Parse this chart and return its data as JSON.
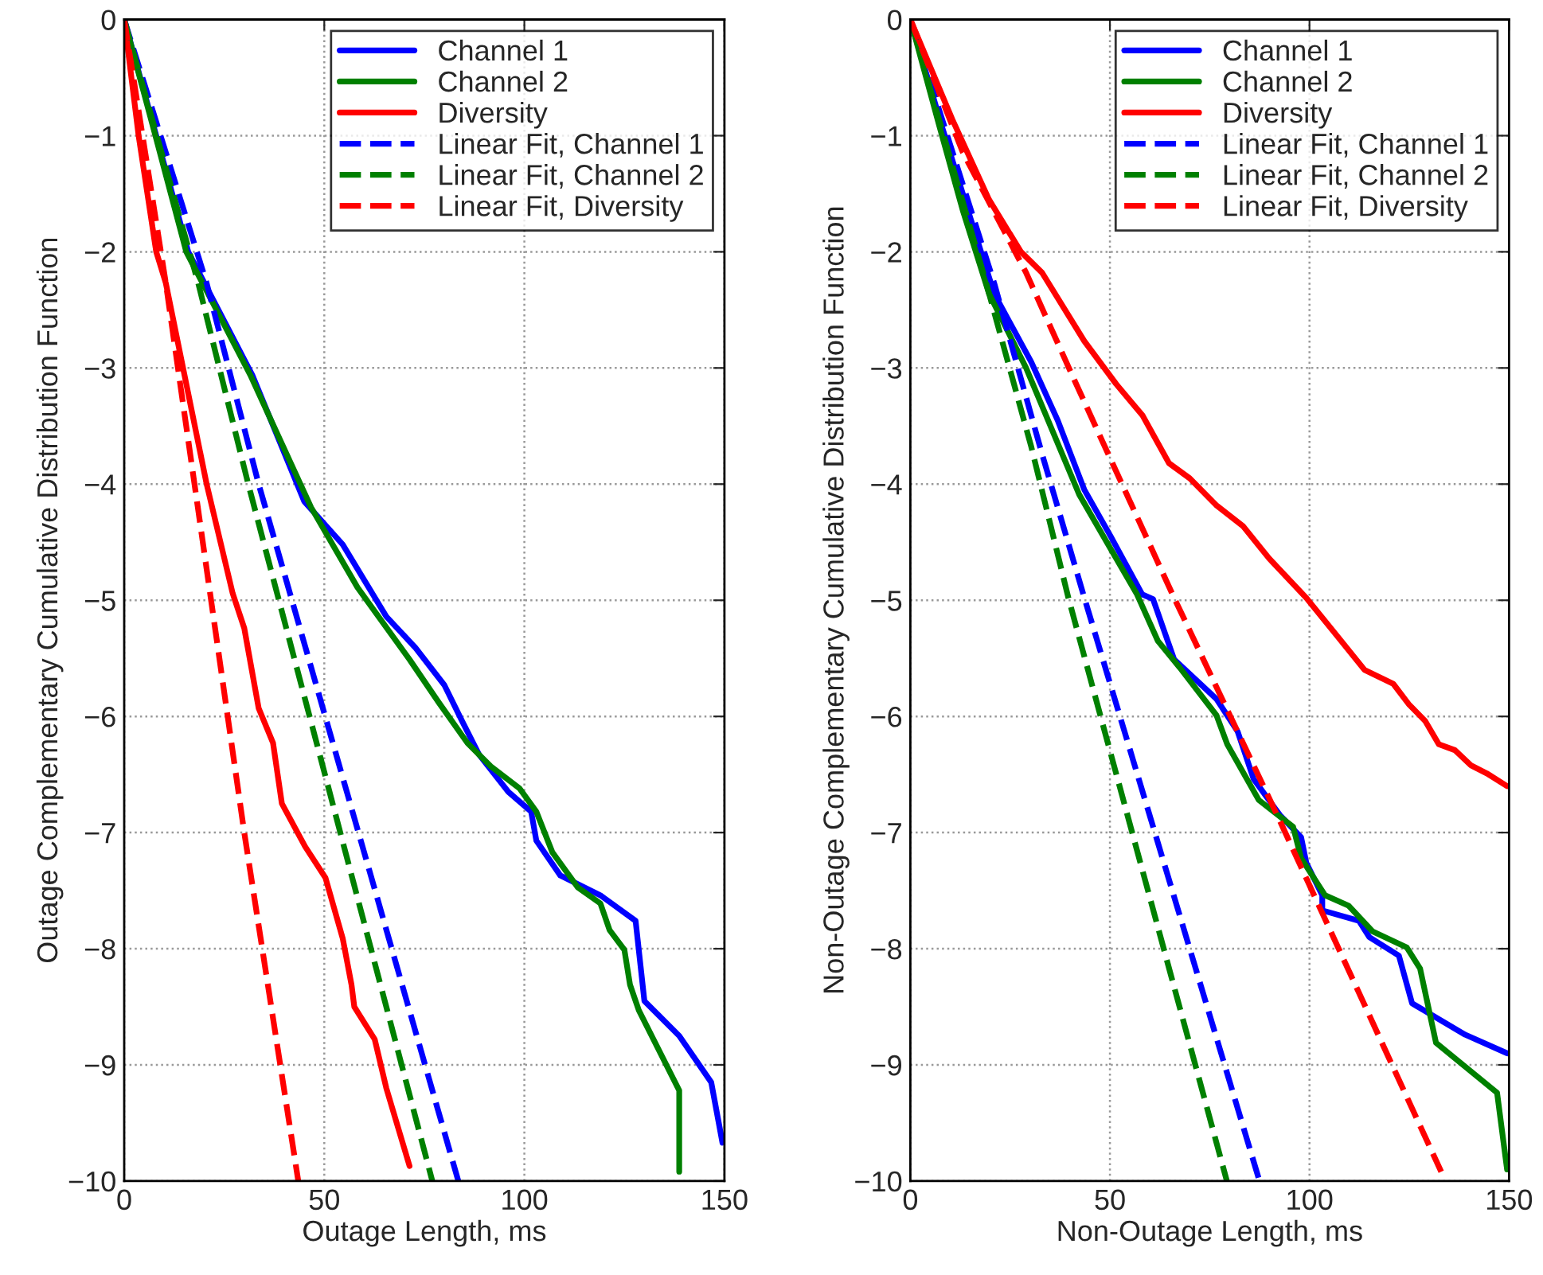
{
  "chart_data": [
    {
      "type": "line",
      "xlabel": "Outage Length, ms",
      "ylabel": "Outage Complementary Cumulative Distribution Function",
      "xlim": [
        0,
        150
      ],
      "ylim": [
        -10,
        0
      ],
      "xticks": [
        0,
        50,
        100,
        150
      ],
      "yticks": [
        {
          "value": -10,
          "label": "−10"
        },
        {
          "value": -9,
          "label": "−9"
        },
        {
          "value": -8,
          "label": "−8"
        },
        {
          "value": -7,
          "label": "−7"
        },
        {
          "value": -6,
          "label": "−6"
        },
        {
          "value": -5,
          "label": "−5"
        },
        {
          "value": -4,
          "label": "−4"
        },
        {
          "value": -3,
          "label": "−3"
        },
        {
          "value": -2,
          "label": "−2"
        },
        {
          "value": -1,
          "label": "−1"
        },
        0
      ],
      "grid": true,
      "legend": "top right",
      "series": [
        {
          "name": "Channel 1",
          "color": "#0000ff",
          "line_style": "solid",
          "x": [
            0,
            8,
            16,
            32,
            45,
            54.6,
            65.5,
            72.8,
            80,
            84.3,
            88.7,
            96,
            101.7,
            103,
            109,
            119,
            127.8,
            130,
            138.7,
            146.7,
            149.5
          ],
          "values": [
            0,
            -1,
            -2,
            -3.06,
            -4.15,
            -4.52,
            -5.14,
            -5.41,
            -5.73,
            -6.03,
            -6.33,
            -6.65,
            -6.82,
            -7.07,
            -7.37,
            -7.54,
            -7.76,
            -8.45,
            -8.75,
            -9.15,
            -9.67
          ]
        },
        {
          "name": "Channel 2",
          "color": "#008000",
          "line_style": "solid",
          "x": [
            0,
            7.8,
            15.5,
            31.5,
            46.7,
            58.3,
            71.3,
            78.6,
            85.8,
            91.6,
            98.8,
            103,
            107,
            113.3,
            119,
            121.3,
            125,
            126.4,
            128.6,
            138.7,
            138.7
          ],
          "values": [
            0,
            -1,
            -2,
            -3.06,
            -4.2,
            -4.89,
            -5.51,
            -5.88,
            -6.23,
            -6.43,
            -6.62,
            -6.82,
            -7.17,
            -7.47,
            -7.61,
            -7.84,
            -8.01,
            -8.31,
            -8.53,
            -9.22,
            -9.92
          ]
        },
        {
          "name": "Diversity",
          "color": "#ff0000",
          "line_style": "solid",
          "x": [
            0,
            3.6,
            8,
            10.4,
            20.6,
            27.1,
            30,
            33.6,
            37.2,
            39.4,
            45.2,
            50.3,
            54.6,
            56.8,
            57.5,
            62.6,
            65.5,
            71.3
          ],
          "values": [
            0,
            -1,
            -2,
            -2.27,
            -4,
            -4.94,
            -5.24,
            -5.93,
            -6.23,
            -6.75,
            -7.12,
            -7.39,
            -7.91,
            -8.31,
            -8.5,
            -8.78,
            -9.2,
            -9.87
          ]
        },
        {
          "name": "Linear Fit, Channel 1",
          "color": "#0000ff",
          "line_style": "dashed",
          "x": [
            0,
            20.6,
            33.6,
            83.5
          ],
          "values": [
            0,
            -2.27,
            -4,
            -10
          ]
        },
        {
          "name": "Linear Fit, Channel 2",
          "color": "#008000",
          "line_style": "dashed",
          "x": [
            0,
            18.5,
            31,
            77
          ],
          "values": [
            0,
            -2.27,
            -4,
            -10
          ]
        },
        {
          "name": "Linear Fit, Diversity",
          "color": "#ff0000",
          "line_style": "dashed",
          "x": [
            0,
            10.4,
            30,
            43.5
          ],
          "values": [
            0,
            -2.27,
            -7,
            -10
          ]
        }
      ]
    },
    {
      "type": "line",
      "xlabel": "Non-Outage Length, ms",
      "ylabel": "Non-Outage Complementary Cumulative Distribution Function",
      "xlim": [
        0,
        150
      ],
      "ylim": [
        -10,
        0
      ],
      "xticks": [
        0,
        50,
        100,
        150
      ],
      "yticks": [
        {
          "value": -10,
          "label": "−10"
        },
        {
          "value": -9,
          "label": "−9"
        },
        {
          "value": -8,
          "label": "−8"
        },
        {
          "value": -7,
          "label": "−7"
        },
        {
          "value": -6,
          "label": "−6"
        },
        {
          "value": -5,
          "label": "−5"
        },
        {
          "value": -4,
          "label": "−4"
        },
        {
          "value": -3,
          "label": "−3"
        },
        {
          "value": -2,
          "label": "−2"
        },
        {
          "value": -1,
          "label": "−1"
        },
        0
      ],
      "grid": true,
      "legend": "top right",
      "series": [
        {
          "name": "Channel 1",
          "color": "#0000ff",
          "line_style": "solid",
          "x": [
            0,
            7.8,
            14.4,
            21,
            30.3,
            36.9,
            43.6,
            50.2,
            58.1,
            60.8,
            66.1,
            76.7,
            82,
            86,
            92.6,
            97.9,
            99.2,
            103.2,
            103.2,
            112.4,
            115,
            122.4,
            125.7,
            139,
            149.5
          ],
          "values": [
            0,
            -0.91,
            -1.64,
            -2.36,
            -2.95,
            -3.45,
            -4.05,
            -4.45,
            -4.95,
            -4.99,
            -5.51,
            -5.85,
            -6.13,
            -6.54,
            -6.85,
            -7.04,
            -7.26,
            -7.54,
            -7.67,
            -7.76,
            -7.9,
            -8.06,
            -8.47,
            -8.74,
            -8.9
          ]
        },
        {
          "name": "Channel 2",
          "color": "#008000",
          "line_style": "solid",
          "x": [
            0,
            7.2,
            13.1,
            19.7,
            29,
            42.3,
            56.8,
            62,
            67.5,
            76.7,
            79.4,
            87.3,
            95.9,
            97.9,
            103.9,
            109.8,
            115.8,
            124.4,
            127.7,
            131.7,
            147,
            149.5
          ],
          "values": [
            0,
            -0.91,
            -1.64,
            -2.36,
            -3,
            -4.09,
            -4.95,
            -5.35,
            -5.58,
            -5.99,
            -6.24,
            -6.72,
            -6.95,
            -7.22,
            -7.54,
            -7.63,
            -7.85,
            -7.99,
            -8.17,
            -8.81,
            -9.24,
            -9.9
          ]
        },
        {
          "name": "Diversity",
          "color": "#ff0000",
          "line_style": "solid",
          "x": [
            0,
            10.5,
            19.7,
            27.7,
            33,
            43.6,
            51.6,
            58.2,
            64.8,
            70,
            76.6,
            83.3,
            89.9,
            99.2,
            107,
            113.8,
            121,
            125,
            129,
            132.4,
            136.4,
            140.4,
            144.4,
            149.5
          ],
          "values": [
            0,
            -0.86,
            -1.55,
            -2,
            -2.18,
            -2.77,
            -3.14,
            -3.41,
            -3.82,
            -3.95,
            -4.18,
            -4.36,
            -4.64,
            -4.98,
            -5.31,
            -5.6,
            -5.72,
            -5.9,
            -6.04,
            -6.24,
            -6.29,
            -6.42,
            -6.49,
            -6.6
          ]
        },
        {
          "name": "Linear Fit, Channel 1",
          "color": "#0000ff",
          "line_style": "dashed",
          "x": [
            0,
            21,
            32.9,
            43.6,
            87.3
          ],
          "values": [
            0,
            -2.27,
            -3.73,
            -4.98,
            -9.98
          ]
        },
        {
          "name": "Linear Fit, Channel 2",
          "color": "#008000",
          "line_style": "dashed",
          "x": [
            0,
            19,
            30.3,
            39.6,
            79.3
          ],
          "values": [
            0,
            -2.27,
            -3.68,
            -4.98,
            -10
          ]
        },
        {
          "name": "Linear Fit, Diversity",
          "color": "#ff0000",
          "line_style": "dashed",
          "x": [
            0,
            13.1,
            29,
            40.9,
            66.1,
            92.6,
            133
          ],
          "values": [
            0,
            -1.14,
            -2.18,
            -3.09,
            -4.98,
            -6.9,
            -9.92
          ]
        }
      ]
    }
  ]
}
